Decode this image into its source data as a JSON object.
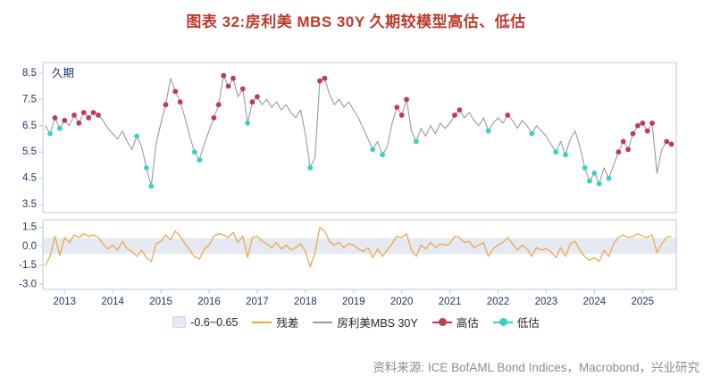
{
  "page": {
    "title": "图表 32:房利美 MBS 30Y 久期较模型高估、低估",
    "title_color": "#bd3a2e",
    "source": "资料来源: ICE BofAML Bond Indices，Macrobond，兴业研究"
  },
  "legend": [
    {
      "label": "-0.6~0.65",
      "type": "band",
      "color": "#e4e9f2"
    },
    {
      "label": "残差",
      "type": "line",
      "color": "#f0a23c"
    },
    {
      "label": "房利美MBS 30Y",
      "type": "line",
      "color": "#9a9a9a"
    },
    {
      "label": "高估",
      "type": "dot",
      "color": "#c13a55"
    },
    {
      "label": "低估",
      "type": "dot",
      "color": "#38d1c3"
    }
  ],
  "chart_data": {
    "type": "line",
    "title": "图表 32:房利美 MBS 30Y 久期较模型高估、低估",
    "legend_position": "bottom",
    "grid": false,
    "xlim": [
      2012.55,
      2025.7
    ],
    "xticks": [
      2013,
      2014,
      2015,
      2016,
      2017,
      2018,
      2019,
      2020,
      2021,
      2022,
      2023,
      2024,
      2025
    ],
    "panels": [
      {
        "name": "duration",
        "label": "久期",
        "ylim": [
          3.2,
          8.9
        ],
        "yticks": [
          3.5,
          4.5,
          5.5,
          6.5,
          7.5,
          8.5
        ]
      },
      {
        "name": "residual",
        "label": "残差",
        "ylim": [
          -3.4,
          2.1
        ],
        "yticks": [
          -3.0,
          -1.5,
          0.0,
          1.5
        ],
        "band": [
          -0.6,
          0.65
        ]
      }
    ],
    "colors": {
      "line": "#9a9a9a",
      "high": "#c13a55",
      "low": "#38d1c3",
      "residual": "#f0a23c",
      "band": "#e4e9f2",
      "axis": "#1f3864",
      "frame": "#bcc7d8"
    },
    "flag_legend": {
      "0": "none",
      "1": "高估",
      "2": "低估"
    },
    "x": [
      2012.6,
      2012.7,
      2012.8,
      2012.9,
      2013.0,
      2013.1,
      2013.2,
      2013.3,
      2013.4,
      2013.5,
      2013.6,
      2013.7,
      2013.8,
      2013.9,
      2014.0,
      2014.1,
      2014.2,
      2014.3,
      2014.4,
      2014.5,
      2014.6,
      2014.7,
      2014.8,
      2014.9,
      2015.0,
      2015.1,
      2015.2,
      2015.3,
      2015.4,
      2015.5,
      2015.6,
      2015.7,
      2015.8,
      2015.9,
      2016.0,
      2016.1,
      2016.2,
      2016.3,
      2016.4,
      2016.5,
      2016.6,
      2016.7,
      2016.8,
      2016.9,
      2017.0,
      2017.1,
      2017.2,
      2017.3,
      2017.4,
      2017.5,
      2017.6,
      2017.7,
      2017.8,
      2017.9,
      2018.0,
      2018.1,
      2018.2,
      2018.3,
      2018.4,
      2018.5,
      2018.6,
      2018.7,
      2018.8,
      2018.9,
      2019.0,
      2019.1,
      2019.2,
      2019.3,
      2019.4,
      2019.5,
      2019.6,
      2019.7,
      2019.8,
      2019.9,
      2020.0,
      2020.1,
      2020.2,
      2020.3,
      2020.4,
      2020.5,
      2020.6,
      2020.7,
      2020.8,
      2020.9,
      2021.0,
      2021.1,
      2021.2,
      2021.3,
      2021.4,
      2021.5,
      2021.6,
      2021.7,
      2021.8,
      2021.9,
      2022.0,
      2022.1,
      2022.2,
      2022.3,
      2022.4,
      2022.5,
      2022.6,
      2022.7,
      2022.8,
      2022.9,
      2023.0,
      2023.1,
      2023.2,
      2023.3,
      2023.4,
      2023.5,
      2023.6,
      2023.7,
      2023.8,
      2023.9,
      2024.0,
      2024.1,
      2024.2,
      2024.3,
      2024.4,
      2024.5,
      2024.6,
      2024.7,
      2024.8,
      2024.9,
      2025.0,
      2025.1,
      2025.2,
      2025.3,
      2025.4,
      2025.5,
      2025.6
    ],
    "duration": [
      6.5,
      6.2,
      6.8,
      6.4,
      6.7,
      6.5,
      6.9,
      6.6,
      7.0,
      6.8,
      7.0,
      6.9,
      6.7,
      6.4,
      6.2,
      6.0,
      6.3,
      5.9,
      5.6,
      6.1,
      5.7,
      4.9,
      4.2,
      5.8,
      6.6,
      7.3,
      8.3,
      7.8,
      7.4,
      6.8,
      6.1,
      5.5,
      5.2,
      5.8,
      6.3,
      6.8,
      7.3,
      8.4,
      8.0,
      8.3,
      7.6,
      7.9,
      6.6,
      7.4,
      7.6,
      7.3,
      7.5,
      7.2,
      7.4,
      7.1,
      7.3,
      7.0,
      6.8,
      7.1,
      6.2,
      4.9,
      5.3,
      8.2,
      8.3,
      7.7,
      7.3,
      7.5,
      7.2,
      7.4,
      7.1,
      6.8,
      6.4,
      6.0,
      5.6,
      5.9,
      5.4,
      5.7,
      6.6,
      7.2,
      6.9,
      7.5,
      6.3,
      5.9,
      6.4,
      6.1,
      6.5,
      6.2,
      6.6,
      6.4,
      6.6,
      6.9,
      7.1,
      6.8,
      7.0,
      6.7,
      6.5,
      6.8,
      6.3,
      6.6,
      6.8,
      6.6,
      6.9,
      6.7,
      6.4,
      6.7,
      6.5,
      6.2,
      6.5,
      6.3,
      6.1,
      5.8,
      5.5,
      5.9,
      5.4,
      6.0,
      6.3,
      5.7,
      4.9,
      4.4,
      4.7,
      4.3,
      4.9,
      4.5,
      5.0,
      5.5,
      5.9,
      5.6,
      6.2,
      6.5,
      6.6,
      6.3,
      6.6,
      4.7,
      5.6,
      5.9,
      5.8
    ],
    "flags": [
      0,
      2,
      1,
      2,
      1,
      0,
      1,
      1,
      1,
      1,
      1,
      1,
      0,
      0,
      0,
      0,
      0,
      0,
      0,
      2,
      0,
      2,
      2,
      0,
      0,
      1,
      0,
      1,
      1,
      0,
      0,
      2,
      2,
      0,
      0,
      1,
      1,
      1,
      1,
      1,
      0,
      1,
      2,
      1,
      1,
      0,
      0,
      0,
      0,
      0,
      0,
      0,
      0,
      0,
      0,
      2,
      0,
      1,
      1,
      0,
      0,
      0,
      0,
      0,
      0,
      0,
      0,
      0,
      2,
      0,
      2,
      0,
      0,
      1,
      1,
      1,
      0,
      2,
      0,
      0,
      0,
      0,
      0,
      0,
      0,
      1,
      1,
      0,
      0,
      0,
      0,
      0,
      2,
      0,
      0,
      0,
      1,
      0,
      0,
      0,
      0,
      2,
      0,
      0,
      0,
      0,
      2,
      0,
      2,
      0,
      0,
      0,
      2,
      2,
      2,
      2,
      0,
      2,
      0,
      1,
      1,
      1,
      1,
      1,
      1,
      1,
      1,
      0,
      0,
      1,
      1
    ],
    "residual": [
      -1.5,
      -0.8,
      0.8,
      -0.7,
      0.7,
      0.3,
      0.9,
      0.7,
      1.0,
      0.8,
      0.9,
      0.7,
      0.2,
      -0.2,
      0.1,
      -0.3,
      0.4,
      -0.2,
      -0.4,
      -0.8,
      -0.3,
      -0.9,
      -1.2,
      0.2,
      0.4,
      0.9,
      0.5,
      1.2,
      0.8,
      0.2,
      -0.3,
      -0.8,
      -1.0,
      -0.2,
      0.1,
      0.8,
      1.0,
      0.9,
      0.7,
      1.1,
      0.3,
      0.8,
      -0.9,
      0.7,
      0.8,
      0.4,
      0.2,
      -0.1,
      0.3,
      -0.2,
      0.1,
      -0.3,
      -0.1,
      0.2,
      -0.4,
      -1.6,
      -0.5,
      1.5,
      1.2,
      0.4,
      0.1,
      0.3,
      -0.1,
      0.2,
      0.1,
      -0.2,
      -0.4,
      -0.1,
      -0.9,
      -0.2,
      -0.8,
      -0.3,
      0.2,
      0.8,
      0.7,
      1.0,
      -0.3,
      -0.8,
      0.1,
      -0.2,
      0.3,
      -0.1,
      0.2,
      0.1,
      0.2,
      0.8,
      0.7,
      0.3,
      0.4,
      -0.1,
      0.1,
      0.3,
      -0.8,
      -0.2,
      0.1,
      0.3,
      0.7,
      0.2,
      -0.3,
      0.1,
      -0.2,
      -0.8,
      -0.1,
      -0.3,
      -0.2,
      -0.4,
      -0.9,
      -0.1,
      -0.8,
      0.2,
      0.4,
      -0.3,
      -0.8,
      -1.1,
      -0.9,
      -1.2,
      -0.3,
      -0.8,
      0.2,
      0.7,
      0.9,
      0.7,
      0.8,
      1.0,
      0.8,
      0.7,
      0.9,
      -0.5,
      0.2,
      0.7,
      0.8
    ]
  }
}
